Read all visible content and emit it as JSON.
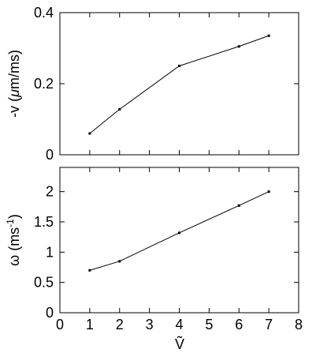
{
  "chart_data": [
    {
      "type": "line",
      "xlabel": "",
      "ylabel": "-v  (μm/ms)",
      "xlim": [
        0,
        8
      ],
      "ylim": [
        0,
        0.4
      ],
      "yticks": [
        "0",
        "0.2",
        "0.4"
      ],
      "x_tick_labels_shown": false,
      "grid": false,
      "series": [
        {
          "x": [
            1,
            2,
            4,
            6,
            7
          ],
          "y": [
            0.06,
            0.128,
            0.25,
            0.305,
            0.335
          ]
        }
      ]
    },
    {
      "type": "line",
      "xlabel": "Ṽ",
      "ylabel": "ω  (ms-1)",
      "xlim": [
        0,
        8
      ],
      "ylim": [
        0,
        2.4
      ],
      "xticks": [
        "0",
        "1",
        "2",
        "3",
        "4",
        "5",
        "6",
        "7",
        "8"
      ],
      "yticks": [
        "0",
        "0.5",
        "1",
        "1.5",
        "2"
      ],
      "grid": false,
      "series": [
        {
          "x": [
            1,
            2,
            4,
            6,
            7
          ],
          "y": [
            0.7,
            0.85,
            1.32,
            1.77,
            2.0
          ]
        }
      ]
    }
  ],
  "labels": {
    "top_ylabel_prefix": "-v  (",
    "top_ylabel_mu": "μ",
    "top_ylabel_suffix": "m/ms)",
    "bottom_ylabel_prefix": "ω  (ms",
    "bottom_ylabel_sup": "-1",
    "bottom_ylabel_suffix": ")",
    "xlabel": "Ṽ"
  }
}
